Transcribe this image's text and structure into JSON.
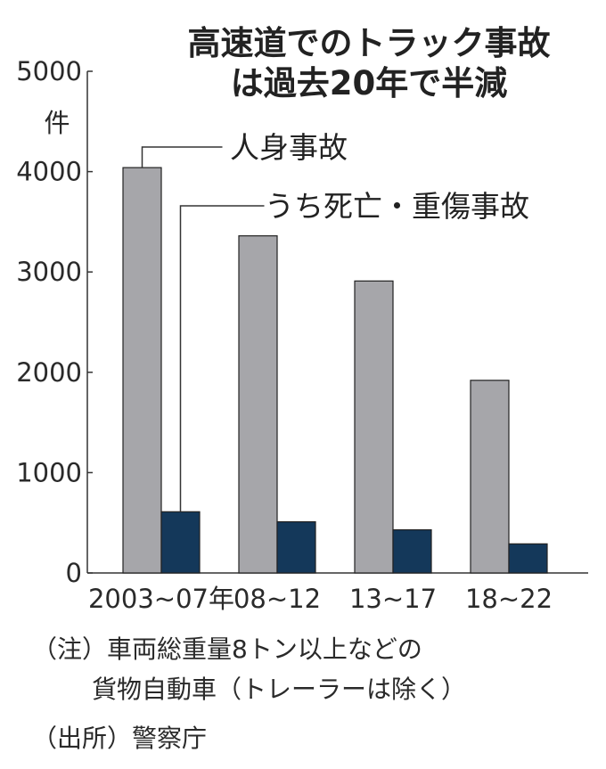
{
  "title": {
    "line1": "高速道でのトラック事故",
    "line2": "は過去20年で半減"
  },
  "unit_label": "件",
  "colors": {
    "series1": "#a6a6aa",
    "series2": "#14385a",
    "axis": "#333333",
    "text": "#2a2a2a"
  },
  "chart_data": {
    "type": "bar",
    "title": "高速道でのトラック事故は過去20年で半減",
    "ylabel": "件",
    "xlabel": "",
    "categories": [
      "2003~07年",
      "08~12",
      "13~17",
      "18~22"
    ],
    "series": [
      {
        "name": "人身事故",
        "values": [
          4040,
          3360,
          2910,
          1920
        ]
      },
      {
        "name": "うち死亡・重傷事故",
        "values": [
          610,
          510,
          430,
          290
        ]
      }
    ],
    "ylim": [
      0,
      5000
    ],
    "yticks": [
      0,
      1000,
      2000,
      3000,
      4000,
      5000
    ],
    "ytick_labels": [
      "0",
      "1000",
      "2000",
      "3000",
      "4000",
      "5000"
    ],
    "grid": false,
    "legend": "callout labels near first group"
  },
  "notes": {
    "note_line1": "（注）車両総重量8トン以上などの",
    "note_line2": "貨物自動車（トレーラーは除く）",
    "source": "（出所）警察庁"
  }
}
